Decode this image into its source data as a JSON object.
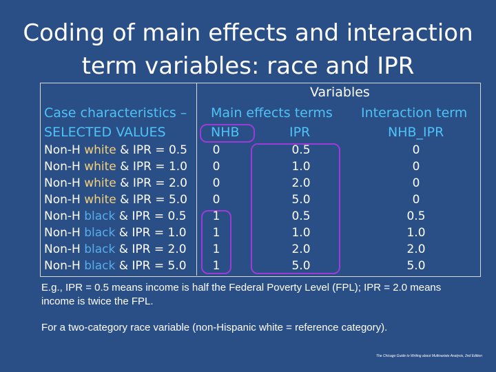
{
  "slide": {
    "title_line1": "Coding of main effects and interaction",
    "title_line2": "term variables: race and IPR"
  },
  "table": {
    "variables_header": "Variables",
    "case_header_line1": "Case characteristics –",
    "case_header_line2": "SELECTED VALUES",
    "main_effects_header": "Main effects terms",
    "interaction_header": "Interaction term",
    "col_nhb": "NHB",
    "col_ipr": "IPR",
    "col_nhb_ipr": "NHB_IPR",
    "rows": [
      {
        "prefix": "Non-H ",
        "race": "white",
        "suffix": " & IPR = 0.5",
        "nhb": "0",
        "ipr": "0.5",
        "nhb_ipr": "0"
      },
      {
        "prefix": "Non-H ",
        "race": "white",
        "suffix": " & IPR = 1.0",
        "nhb": "0",
        "ipr": "1.0",
        "nhb_ipr": "0"
      },
      {
        "prefix": "Non-H ",
        "race": "white",
        "suffix": " & IPR = 2.0",
        "nhb": "0",
        "ipr": "2.0",
        "nhb_ipr": "0"
      },
      {
        "prefix": "Non-H ",
        "race": "white",
        "suffix": " & IPR = 5.0",
        "nhb": "0",
        "ipr": "5.0",
        "nhb_ipr": "0"
      },
      {
        "prefix": "Non-H ",
        "race": "black",
        "suffix": " & IPR = 0.5",
        "nhb": "1",
        "ipr": "0.5",
        "nhb_ipr": "0.5"
      },
      {
        "prefix": "Non-H ",
        "race": "black",
        "suffix": " & IPR = 1.0",
        "nhb": "1",
        "ipr": "1.0",
        "nhb_ipr": "1.0"
      },
      {
        "prefix": "Non-H ",
        "race": "black",
        "suffix": " & IPR = 2.0",
        "nhb": "1",
        "ipr": "2.0",
        "nhb_ipr": "2.0"
      },
      {
        "prefix": "Non-H ",
        "race": "black",
        "suffix": " & IPR = 5.0",
        "nhb": "1",
        "ipr": "5.0",
        "nhb_ipr": "5.0"
      }
    ]
  },
  "notes": {
    "note1": "E.g., IPR = 0.5 means income is half the Federal Poverty Level (FPL); IPR = 2.0 means income is twice the FPL.",
    "note2": "For a two-category race variable (non-Hispanic white = reference category)."
  },
  "footer": "The Chicago Guide to Writing about Multivariate Analysis, 2nd Edition",
  "colors": {
    "background": "#2a4e86",
    "header_text": "#4fc3f7",
    "white_word": "#f5d27a",
    "black_word": "#5aaeea",
    "highlight_outline": "#9b3cd8"
  }
}
